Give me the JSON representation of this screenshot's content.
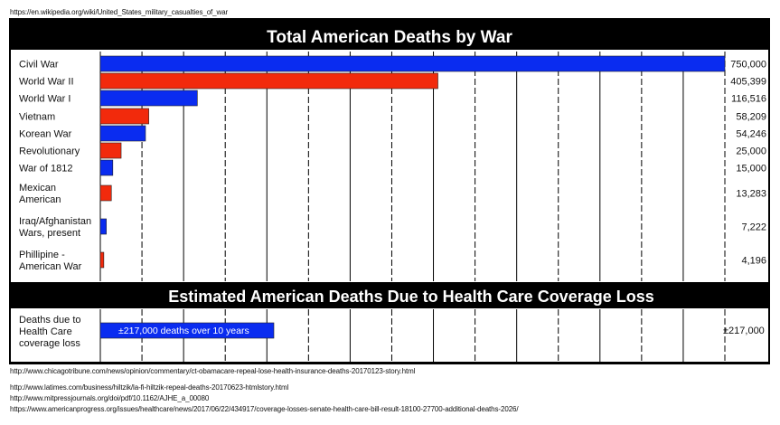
{
  "source_top": "https://en.wikipedia.org/wiki/United_States_military_casualties_of_war",
  "sources_bottom": [
    "http://www.chicagotribune.com/news/opinion/commentary/ct-obamacare-repeal-lose-health-insurance-deaths-20170123-story.html",
    "http://www.latimes.com/business/hiltzik/la-fi-hiltzik-repeal-deaths-20170623-htmlstory.html",
    "http://www.mitpressjournals.org/doi/pdf/10.1162/AJHE_a_00080",
    "https://www.americanprogress.org/issues/healthcare/news/2017/06/22/434917/coverage-losses-senate-health-care-bill-result-18100-27700-additional-deaths-2026/"
  ],
  "colors": {
    "blue": "#0a2cf0",
    "red": "#f22a0c",
    "header": "#000000"
  },
  "chart_data": [
    {
      "type": "bar",
      "orientation": "horizontal",
      "title": "Total American Deaths by War",
      "categories": [
        "Civil War",
        "World War II",
        "World War I",
        "Vietnam",
        "Korean War",
        "Revolutionary",
        "War of 1812",
        "Mexican American",
        "Iraq/Afghanistan Wars, present",
        "Phillipine - American War"
      ],
      "values": [
        750000,
        405399,
        116516,
        58209,
        54246,
        25000,
        15000,
        13283,
        7222,
        4196
      ],
      "value_labels": [
        "750,000",
        "405,399",
        "116,516",
        "58,209",
        "54,246",
        "25,000",
        "15,000",
        "13,283",
        "7,222",
        "4,196"
      ],
      "bar_colors": [
        "blue",
        "red",
        "blue",
        "red",
        "blue",
        "red",
        "blue",
        "red",
        "blue",
        "red"
      ],
      "xlim": [
        0,
        750000
      ],
      "grid": true
    },
    {
      "type": "bar",
      "orientation": "horizontal",
      "title": "Estimated American Deaths Due to Health Care Coverage Loss",
      "categories": [
        "Deaths due to Health Care coverage loss"
      ],
      "values": [
        217000
      ],
      "value_labels": [
        "±217,000"
      ],
      "bar_text": "±217,000 deaths over 10 years",
      "bar_colors": [
        "blue"
      ],
      "xlim": [
        0,
        750000
      ],
      "grid": true
    }
  ]
}
